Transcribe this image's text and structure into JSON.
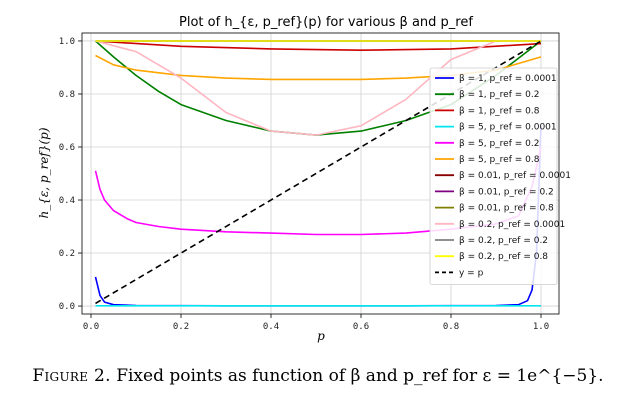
{
  "chart_data": {
    "type": "line",
    "title": "Plot of h_{ε, p_ref}(p) for various β and p_ref",
    "xlabel": "p",
    "ylabel": "h_{ε, p_ref}(p)",
    "xlim": [
      -0.02,
      1.04
    ],
    "ylim": [
      -0.03,
      1.03
    ],
    "xticks": [
      "0.0",
      "0.2",
      "0.4",
      "0.6",
      "0.8",
      "1.0"
    ],
    "yticks": [
      "0.0",
      "0.2",
      "0.4",
      "0.6",
      "0.8",
      "1.0"
    ],
    "grid": true,
    "legend_position": "right",
    "series": [
      {
        "name": "β = 1, p_ref = 0.0001",
        "color": "#0000ff",
        "x": [
          0.01,
          0.02,
          0.03,
          0.05,
          0.1,
          0.3,
          0.5,
          0.7,
          0.9,
          0.95,
          0.97,
          0.98,
          0.99,
          1.0
        ],
        "y": [
          0.11,
          0.04,
          0.015,
          0.005,
          0.002,
          0.001,
          0.001,
          0.001,
          0.002,
          0.005,
          0.02,
          0.06,
          0.2,
          0.68
        ]
      },
      {
        "name": "β = 1, p_ref = 0.2",
        "color": "#008000",
        "x": [
          0.01,
          0.05,
          0.1,
          0.15,
          0.2,
          0.3,
          0.4,
          0.5,
          0.6,
          0.7,
          0.8,
          0.9,
          1.0
        ],
        "y": [
          1.0,
          0.94,
          0.87,
          0.81,
          0.76,
          0.7,
          0.66,
          0.645,
          0.66,
          0.7,
          0.76,
          0.87,
          1.0
        ]
      },
      {
        "name": "β = 1, p_ref = 0.8",
        "color": "#cc0000",
        "x": [
          0.01,
          0.2,
          0.4,
          0.6,
          0.8,
          1.0
        ],
        "y": [
          1.0,
          0.98,
          0.97,
          0.965,
          0.97,
          0.99
        ]
      },
      {
        "name": "β = 5, p_ref = 0.0001",
        "color": "#00e5ee",
        "x": [
          0.01,
          0.2,
          0.4,
          0.6,
          0.8,
          1.0
        ],
        "y": [
          0.001,
          0.001,
          0.001,
          0.001,
          0.001,
          0.001
        ]
      },
      {
        "name": "β = 5, p_ref = 0.2",
        "color": "#ff00ff",
        "x": [
          0.01,
          0.02,
          0.03,
          0.05,
          0.08,
          0.1,
          0.15,
          0.2,
          0.3,
          0.4,
          0.5,
          0.6,
          0.7,
          0.8,
          0.9,
          0.95,
          0.98,
          1.0
        ],
        "y": [
          0.51,
          0.44,
          0.4,
          0.36,
          0.33,
          0.315,
          0.3,
          0.29,
          0.28,
          0.275,
          0.27,
          0.27,
          0.275,
          0.29,
          0.31,
          0.34,
          0.45,
          0.6
        ]
      },
      {
        "name": "β = 5, p_ref = 0.8",
        "color": "#ffa500",
        "x": [
          0.01,
          0.05,
          0.1,
          0.2,
          0.3,
          0.4,
          0.5,
          0.6,
          0.7,
          0.8,
          0.9,
          1.0
        ],
        "y": [
          0.945,
          0.91,
          0.89,
          0.87,
          0.86,
          0.855,
          0.855,
          0.855,
          0.86,
          0.87,
          0.89,
          0.94
        ]
      },
      {
        "name": "β = 0.01, p_ref = 0.0001",
        "color": "#8b0000",
        "x": [
          0.01,
          1.0
        ],
        "y": [
          1.0,
          1.0
        ]
      },
      {
        "name": "β = 0.01, p_ref = 0.2",
        "color": "#800080",
        "x": [
          0.01,
          1.0
        ],
        "y": [
          1.0,
          1.0
        ]
      },
      {
        "name": "β = 0.01, p_ref = 0.8",
        "color": "#808000",
        "x": [
          0.01,
          1.0
        ],
        "y": [
          1.0,
          1.0
        ]
      },
      {
        "name": "β = 0.2, p_ref = 0.0001",
        "color": "#ffb6c1",
        "x": [
          0.01,
          0.1,
          0.2,
          0.3,
          0.4,
          0.5,
          0.6,
          0.7,
          0.8,
          0.9,
          1.0
        ],
        "y": [
          1.0,
          0.96,
          0.86,
          0.73,
          0.66,
          0.645,
          0.68,
          0.78,
          0.93,
          1.0,
          1.0
        ]
      },
      {
        "name": "β = 0.2, p_ref = 0.2",
        "color": "#808080",
        "x": [
          0.01,
          1.0
        ],
        "y": [
          1.0,
          1.0
        ]
      },
      {
        "name": "β = 0.2, p_ref = 0.8",
        "color": "#ffff00",
        "x": [
          0.01,
          1.0
        ],
        "y": [
          1.0,
          1.0
        ]
      },
      {
        "name": "y = p",
        "color": "#000000",
        "dashed": true,
        "x": [
          0.01,
          1.0
        ],
        "y": [
          0.01,
          1.0
        ]
      }
    ]
  },
  "caption": {
    "label": "Figure 2.",
    "text": "Fixed points as function of β and p_ref for ε = 1e^{−5}."
  }
}
